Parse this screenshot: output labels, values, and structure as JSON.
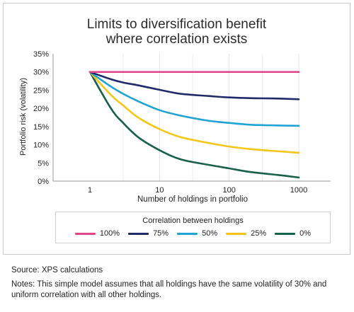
{
  "chart_data": {
    "type": "line",
    "title_lines": [
      "Limits to diversification benefit",
      "where correlation exists"
    ],
    "xlabel": "Number of holdings in portfolio",
    "ylabel": "Portfolio risk (volatility)",
    "xscale": "log",
    "xlim": [
      1,
      1000
    ],
    "ylim": [
      0,
      35
    ],
    "xticks": [
      1,
      10,
      100,
      1000
    ],
    "xtick_labels": [
      "1",
      "10",
      "100",
      "1000"
    ],
    "yticks": [
      0,
      5,
      10,
      15,
      20,
      25,
      30,
      35
    ],
    "ytick_labels": [
      "0%",
      "5%",
      "10%",
      "15%",
      "20%",
      "25%",
      "30%",
      "35%"
    ],
    "grid": "vertical",
    "legend_title": "Correlation between holdings",
    "legend_position": "bottom",
    "x": [
      1,
      2,
      3,
      5,
      10,
      20,
      50,
      100,
      200,
      500,
      1000
    ],
    "series": [
      {
        "name": "100%",
        "color": "#e2478b",
        "values": [
          30.0,
          30.0,
          30.0,
          30.0,
          30.0,
          30.0,
          30.0,
          30.0,
          30.0,
          30.0,
          30.0
        ]
      },
      {
        "name": "75%",
        "color": "#1f2a6b",
        "values": [
          30.0,
          28.0,
          27.1,
          26.3,
          25.1,
          24.0,
          23.4,
          23.0,
          22.8,
          22.7,
          22.5
        ]
      },
      {
        "name": "50%",
        "color": "#1fa3d4",
        "values": [
          30.0,
          26.0,
          24.0,
          21.9,
          19.5,
          18.0,
          16.6,
          16.0,
          15.5,
          15.3,
          15.2
        ]
      },
      {
        "name": "25%",
        "color": "#f5c518",
        "values": [
          30.0,
          23.7,
          20.8,
          17.4,
          14.3,
          12.1,
          10.5,
          9.5,
          8.8,
          8.2,
          7.8
        ]
      },
      {
        "name": "0%",
        "color": "#17604a",
        "values": [
          30.0,
          20.0,
          16.0,
          12.0,
          8.5,
          6.0,
          4.5,
          3.5,
          2.5,
          1.7,
          1.0
        ]
      }
    ]
  },
  "footer": {
    "source": "Source: XPS calculations",
    "notes": "Notes: This simple model assumes that all holdings have the same volatility of 30% and uniform correlation with all other holdings."
  }
}
